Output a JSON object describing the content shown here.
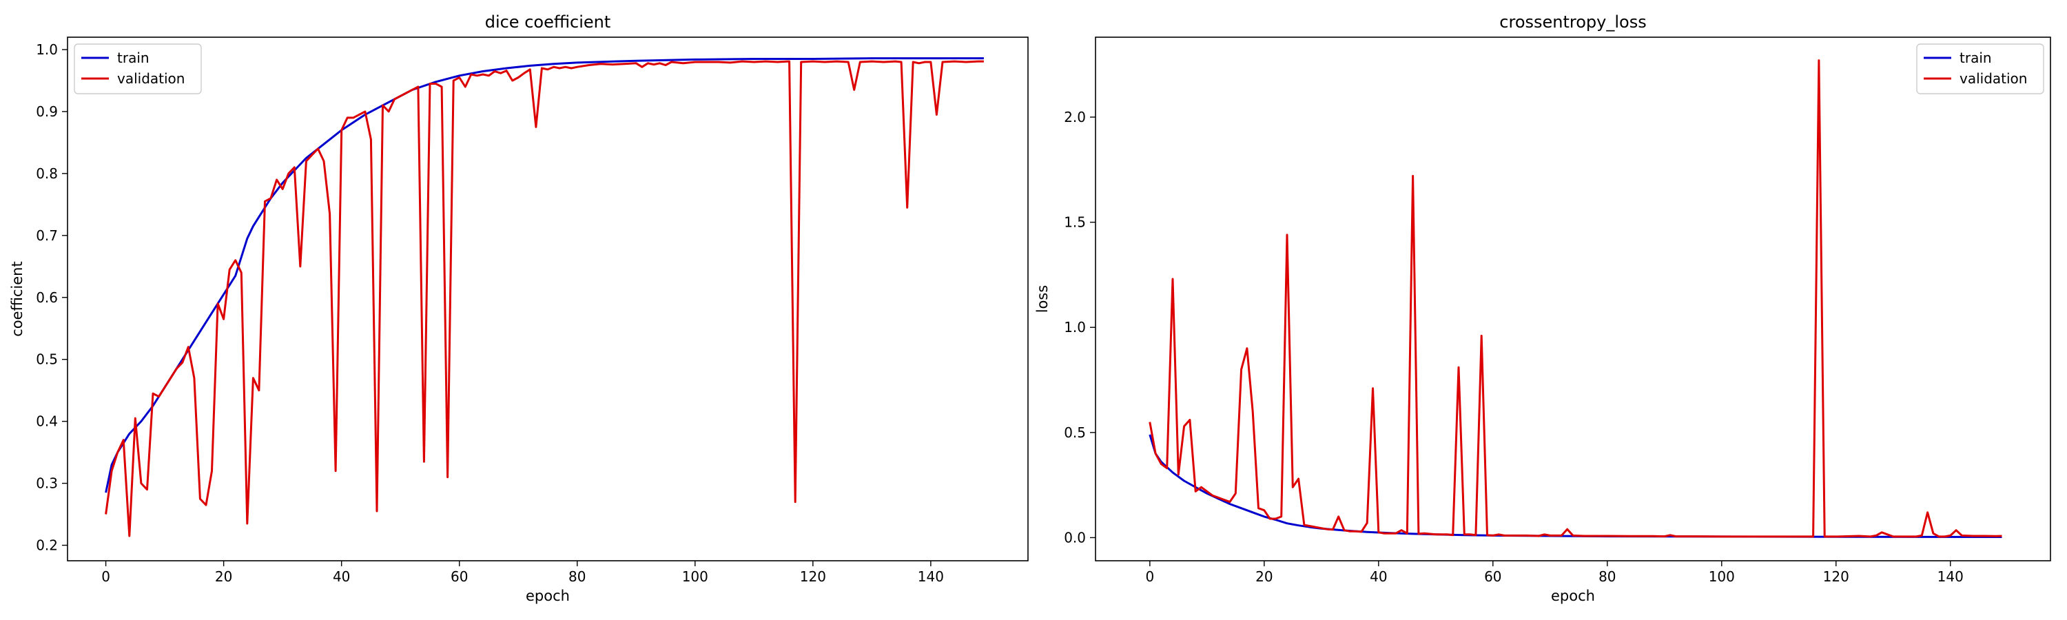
{
  "chart_data": [
    {
      "type": "line",
      "title": "dice coefficient",
      "xlabel": "epoch",
      "ylabel": "coefficient",
      "xlim": [
        -6.5,
        156.5
      ],
      "ylim": [
        0.175,
        1.02
      ],
      "xticks": [
        0,
        20,
        40,
        60,
        80,
        100,
        120,
        140
      ],
      "yticks": [
        0.2,
        0.3,
        0.4,
        0.5,
        0.6,
        0.7,
        0.8,
        0.9,
        1.0
      ],
      "grid": false,
      "legend": "upper-left",
      "series": [
        {
          "name": "train",
          "color": "#0000cc",
          "x": [
            0,
            1,
            2,
            4,
            6,
            8,
            10,
            12,
            14,
            16,
            18,
            20,
            22,
            24,
            25,
            26,
            28,
            30,
            32,
            34,
            36,
            38,
            40,
            44,
            48,
            52,
            56,
            60,
            64,
            68,
            72,
            76,
            80,
            90,
            100,
            110,
            120,
            130,
            140,
            149
          ],
          "y": [
            0.285,
            0.33,
            0.35,
            0.38,
            0.4,
            0.425,
            0.455,
            0.485,
            0.515,
            0.545,
            0.575,
            0.605,
            0.635,
            0.695,
            0.715,
            0.73,
            0.76,
            0.785,
            0.805,
            0.825,
            0.84,
            0.855,
            0.87,
            0.895,
            0.915,
            0.935,
            0.948,
            0.958,
            0.965,
            0.97,
            0.974,
            0.977,
            0.979,
            0.982,
            0.984,
            0.985,
            0.985,
            0.986,
            0.986,
            0.986
          ]
        },
        {
          "name": "validation",
          "color": "#dd0000",
          "x": [
            0,
            1,
            2,
            3,
            4,
            5,
            6,
            7,
            8,
            9,
            10,
            11,
            12,
            13,
            14,
            15,
            16,
            17,
            18,
            19,
            20,
            21,
            22,
            23,
            24,
            25,
            26,
            27,
            28,
            29,
            30,
            31,
            32,
            33,
            34,
            35,
            36,
            37,
            38,
            39,
            40,
            41,
            42,
            43,
            44,
            45,
            46,
            47,
            48,
            49,
            50,
            51,
            52,
            53,
            54,
            55,
            56,
            57,
            58,
            59,
            60,
            61,
            62,
            63,
            64,
            65,
            66,
            67,
            68,
            69,
            70,
            71,
            72,
            73,
            74,
            75,
            76,
            77,
            78,
            79,
            80,
            82,
            84,
            86,
            88,
            90,
            91,
            92,
            93,
            94,
            95,
            96,
            98,
            100,
            102,
            104,
            106,
            108,
            110,
            112,
            114,
            116,
            117,
            118,
            120,
            122,
            124,
            126,
            127,
            128,
            130,
            132,
            134,
            135,
            136,
            137,
            138,
            139,
            140,
            141,
            142,
            144,
            146,
            148,
            149
          ],
          "y": [
            0.25,
            0.32,
            0.35,
            0.37,
            0.215,
            0.405,
            0.3,
            0.29,
            0.445,
            0.44,
            0.455,
            0.47,
            0.485,
            0.495,
            0.52,
            0.47,
            0.275,
            0.265,
            0.32,
            0.59,
            0.565,
            0.645,
            0.66,
            0.64,
            0.235,
            0.47,
            0.45,
            0.755,
            0.76,
            0.79,
            0.775,
            0.8,
            0.81,
            0.65,
            0.82,
            0.83,
            0.84,
            0.82,
            0.735,
            0.32,
            0.87,
            0.89,
            0.89,
            0.895,
            0.9,
            0.855,
            0.255,
            0.91,
            0.9,
            0.92,
            0.925,
            0.93,
            0.935,
            0.94,
            0.335,
            0.945,
            0.945,
            0.94,
            0.31,
            0.95,
            0.955,
            0.94,
            0.96,
            0.958,
            0.96,
            0.958,
            0.965,
            0.962,
            0.966,
            0.95,
            0.955,
            0.962,
            0.968,
            0.875,
            0.97,
            0.968,
            0.972,
            0.97,
            0.972,
            0.97,
            0.972,
            0.975,
            0.977,
            0.976,
            0.977,
            0.978,
            0.972,
            0.978,
            0.976,
            0.978,
            0.975,
            0.98,
            0.978,
            0.98,
            0.98,
            0.98,
            0.979,
            0.981,
            0.98,
            0.981,
            0.98,
            0.981,
            0.27,
            0.98,
            0.981,
            0.98,
            0.981,
            0.98,
            0.935,
            0.98,
            0.981,
            0.98,
            0.981,
            0.98,
            0.745,
            0.98,
            0.978,
            0.98,
            0.98,
            0.895,
            0.98,
            0.981,
            0.98,
            0.981,
            0.981
          ]
        }
      ]
    },
    {
      "type": "line",
      "title": "crossentropy_loss",
      "xlabel": "epoch",
      "ylabel": "loss",
      "xlim": [
        -9.5,
        157.5
      ],
      "ylim": [
        -0.11,
        2.38
      ],
      "xticks": [
        0,
        20,
        40,
        60,
        80,
        100,
        120,
        140
      ],
      "yticks": [
        0.0,
        0.5,
        1.0,
        1.5,
        2.0
      ],
      "grid": false,
      "legend": "upper-right",
      "series": [
        {
          "name": "train",
          "color": "#0000cc",
          "x": [
            0,
            1,
            2,
            4,
            6,
            8,
            10,
            12,
            14,
            16,
            18,
            20,
            22,
            24,
            26,
            28,
            30,
            34,
            38,
            42,
            46,
            50,
            55,
            60,
            70,
            80,
            100,
            120,
            149
          ],
          "y": [
            0.49,
            0.4,
            0.36,
            0.31,
            0.27,
            0.24,
            0.21,
            0.185,
            0.16,
            0.14,
            0.12,
            0.1,
            0.085,
            0.068,
            0.058,
            0.05,
            0.043,
            0.034,
            0.027,
            0.022,
            0.018,
            0.015,
            0.012,
            0.01,
            0.008,
            0.006,
            0.005,
            0.004,
            0.003
          ]
        },
        {
          "name": "validation",
          "color": "#dd0000",
          "x": [
            0,
            1,
            2,
            3,
            4,
            5,
            6,
            7,
            8,
            9,
            10,
            11,
            12,
            13,
            14,
            15,
            16,
            17,
            18,
            19,
            20,
            21,
            22,
            23,
            24,
            25,
            26,
            27,
            28,
            29,
            30,
            31,
            32,
            33,
            34,
            35,
            36,
            37,
            38,
            39,
            40,
            41,
            42,
            43,
            44,
            45,
            46,
            47,
            48,
            50,
            52,
            53,
            54,
            55,
            56,
            57,
            58,
            59,
            60,
            61,
            62,
            64,
            66,
            68,
            69,
            70,
            71,
            72,
            73,
            74,
            76,
            80,
            84,
            88,
            90,
            91,
            92,
            96,
            100,
            104,
            108,
            112,
            116,
            117,
            118,
            120,
            124,
            126,
            127,
            128,
            130,
            132,
            134,
            135,
            136,
            137,
            138,
            139,
            140,
            141,
            142,
            144,
            146,
            148,
            149
          ],
          "y": [
            0.55,
            0.4,
            0.35,
            0.33,
            1.23,
            0.3,
            0.53,
            0.56,
            0.22,
            0.24,
            0.22,
            0.2,
            0.19,
            0.18,
            0.17,
            0.21,
            0.8,
            0.9,
            0.6,
            0.14,
            0.13,
            0.09,
            0.09,
            0.1,
            1.44,
            0.24,
            0.28,
            0.06,
            0.055,
            0.05,
            0.045,
            0.04,
            0.038,
            0.1,
            0.035,
            0.03,
            0.03,
            0.028,
            0.07,
            0.71,
            0.025,
            0.02,
            0.02,
            0.02,
            0.035,
            0.02,
            1.72,
            0.018,
            0.02,
            0.015,
            0.015,
            0.012,
            0.81,
            0.015,
            0.015,
            0.012,
            0.96,
            0.012,
            0.01,
            0.015,
            0.01,
            0.01,
            0.01,
            0.008,
            0.015,
            0.01,
            0.01,
            0.01,
            0.04,
            0.01,
            0.008,
            0.008,
            0.007,
            0.007,
            0.006,
            0.012,
            0.006,
            0.006,
            0.005,
            0.005,
            0.005,
            0.005,
            0.005,
            2.27,
            0.005,
            0.005,
            0.008,
            0.005,
            0.01,
            0.025,
            0.005,
            0.005,
            0.005,
            0.01,
            0.12,
            0.02,
            0.005,
            0.005,
            0.01,
            0.035,
            0.01,
            0.008,
            0.008,
            0.007,
            0.008
          ]
        }
      ]
    }
  ]
}
